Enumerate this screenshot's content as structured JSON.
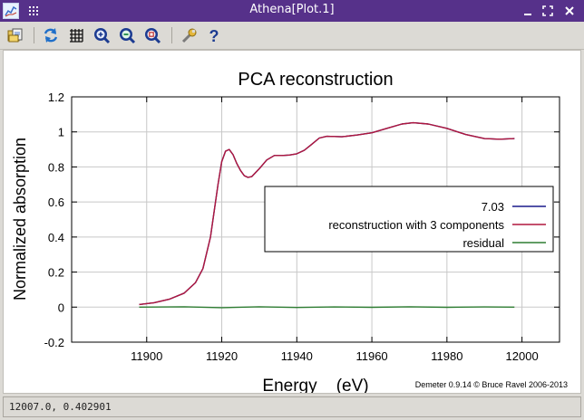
{
  "window": {
    "title": "Athena[Plot.1]",
    "controls": [
      "minimize",
      "maximize",
      "close"
    ],
    "title_bar_color": "#56318a"
  },
  "toolbar": {
    "icons": [
      "open-file-icon",
      "refresh-icon",
      "grid-icon",
      "zoom-in-icon",
      "zoom-out-icon",
      "zoom-reset-icon",
      "wrench-icon",
      "help-icon"
    ]
  },
  "chart_data": {
    "type": "line",
    "title": "PCA reconstruction",
    "xlabel": "Energy    (eV)",
    "ylabel": "Normalized absorption",
    "xlim": [
      11880,
      12010
    ],
    "ylim": [
      -0.2,
      1.2
    ],
    "x_ticks": [
      11900,
      11920,
      11940,
      11960,
      11980,
      12000
    ],
    "y_ticks": [
      -0.2,
      0,
      0.2,
      0.4,
      0.6,
      0.8,
      1,
      1.2
    ],
    "x_tick_labels": [
      "11900",
      "11920",
      "11940",
      "11960",
      "11980",
      "12000"
    ],
    "y_tick_labels": [
      "-0.2",
      "0",
      "0.2",
      "0.4",
      "0.6",
      "0.8",
      "1",
      "1.2"
    ],
    "grid": true,
    "legend_position": "right-middle",
    "credit": "Demeter 0.9.14 © Bruce Ravel 2006-2013",
    "series": [
      {
        "name": "7.03",
        "color": "#1a1a8c",
        "points": [
          [
            11898,
            0.015
          ],
          [
            11902,
            0.025
          ],
          [
            11906,
            0.045
          ],
          [
            11910,
            0.08
          ],
          [
            11913,
            0.14
          ],
          [
            11915,
            0.22
          ],
          [
            11917,
            0.4
          ],
          [
            11919,
            0.7
          ],
          [
            11920,
            0.83
          ],
          [
            11921,
            0.89
          ],
          [
            11922,
            0.9
          ],
          [
            11923,
            0.87
          ],
          [
            11924,
            0.82
          ],
          [
            11925,
            0.78
          ],
          [
            11926,
            0.75
          ],
          [
            11927,
            0.74
          ],
          [
            11928,
            0.745
          ],
          [
            11930,
            0.79
          ],
          [
            11932,
            0.84
          ],
          [
            11934,
            0.865
          ],
          [
            11936,
            0.865
          ],
          [
            11938,
            0.868
          ],
          [
            11940,
            0.875
          ],
          [
            11942,
            0.895
          ],
          [
            11944,
            0.93
          ],
          [
            11946,
            0.965
          ],
          [
            11948,
            0.975
          ],
          [
            11952,
            0.972
          ],
          [
            11956,
            0.982
          ],
          [
            11960,
            0.995
          ],
          [
            11964,
            1.02
          ],
          [
            11968,
            1.045
          ],
          [
            11971,
            1.052
          ],
          [
            11975,
            1.045
          ],
          [
            11980,
            1.02
          ],
          [
            11985,
            0.985
          ],
          [
            11990,
            0.962
          ],
          [
            11994,
            0.958
          ],
          [
            11998,
            0.962
          ]
        ]
      },
      {
        "name": "reconstruction with 3 components",
        "color": "#b0173d",
        "points": [
          [
            11898,
            0.015
          ],
          [
            11902,
            0.025
          ],
          [
            11906,
            0.045
          ],
          [
            11910,
            0.08
          ],
          [
            11913,
            0.14
          ],
          [
            11915,
            0.22
          ],
          [
            11917,
            0.4
          ],
          [
            11919,
            0.7
          ],
          [
            11920,
            0.83
          ],
          [
            11921,
            0.89
          ],
          [
            11922,
            0.9
          ],
          [
            11923,
            0.87
          ],
          [
            11924,
            0.82
          ],
          [
            11925,
            0.78
          ],
          [
            11926,
            0.75
          ],
          [
            11927,
            0.74
          ],
          [
            11928,
            0.745
          ],
          [
            11930,
            0.79
          ],
          [
            11932,
            0.84
          ],
          [
            11934,
            0.865
          ],
          [
            11936,
            0.865
          ],
          [
            11938,
            0.868
          ],
          [
            11940,
            0.875
          ],
          [
            11942,
            0.895
          ],
          [
            11944,
            0.93
          ],
          [
            11946,
            0.965
          ],
          [
            11948,
            0.975
          ],
          [
            11952,
            0.972
          ],
          [
            11956,
            0.982
          ],
          [
            11960,
            0.995
          ],
          [
            11964,
            1.02
          ],
          [
            11968,
            1.045
          ],
          [
            11971,
            1.052
          ],
          [
            11975,
            1.045
          ],
          [
            11980,
            1.02
          ],
          [
            11985,
            0.985
          ],
          [
            11990,
            0.962
          ],
          [
            11994,
            0.958
          ],
          [
            11998,
            0.962
          ]
        ]
      },
      {
        "name": "residual",
        "color": "#2e7d32",
        "points": [
          [
            11898,
            0.0
          ],
          [
            11910,
            0.002
          ],
          [
            11920,
            -0.003
          ],
          [
            11930,
            0.002
          ],
          [
            11940,
            -0.002
          ],
          [
            11950,
            0.001
          ],
          [
            11960,
            -0.001
          ],
          [
            11970,
            0.002
          ],
          [
            11980,
            -0.001
          ],
          [
            11990,
            0.001
          ],
          [
            11998,
            0.0
          ]
        ]
      }
    ]
  },
  "status": {
    "text": "12007.0,  0.402901"
  }
}
